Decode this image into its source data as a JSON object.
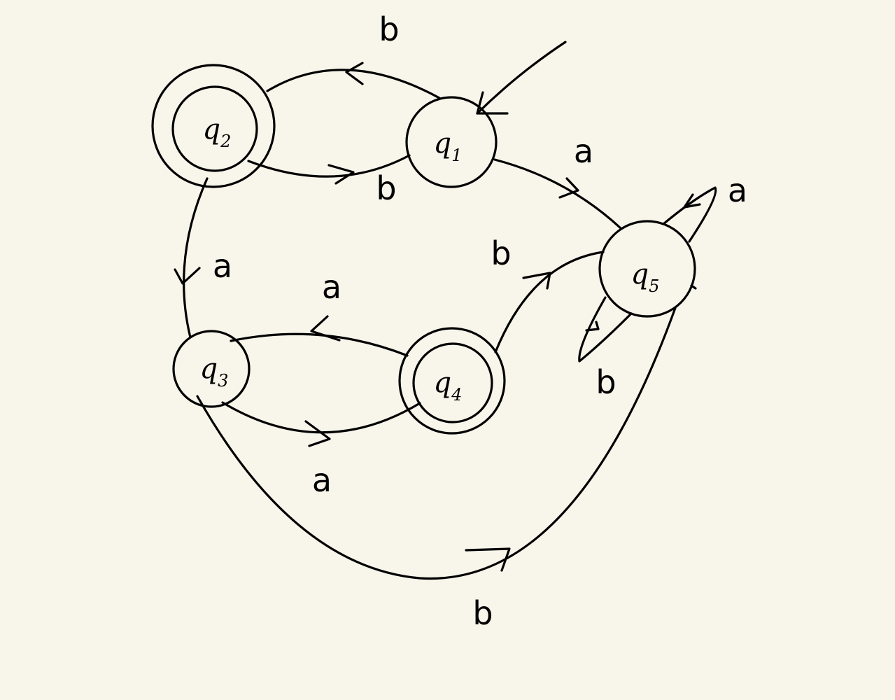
{
  "states": [
    {
      "id": "q1",
      "letter": "q",
      "index": "1",
      "accepting": false,
      "start": true
    },
    {
      "id": "q2",
      "letter": "q",
      "index": "2",
      "accepting": true,
      "start": false
    },
    {
      "id": "q3",
      "letter": "q",
      "index": "3",
      "accepting": false,
      "start": false
    },
    {
      "id": "q4",
      "letter": "q",
      "index": "4",
      "accepting": true,
      "start": false
    },
    {
      "id": "q5",
      "letter": "q",
      "index": "5",
      "accepting": false,
      "start": false
    }
  ],
  "transitions": [
    {
      "id": "q1-q2",
      "from": "q1",
      "to": "q2",
      "symbol": "b"
    },
    {
      "id": "q2-q1",
      "from": "q2",
      "to": "q1",
      "symbol": "b"
    },
    {
      "id": "q1-q5",
      "from": "q1",
      "to": "q5",
      "symbol": "a"
    },
    {
      "id": "q2-q3",
      "from": "q2",
      "to": "q3",
      "symbol": "a"
    },
    {
      "id": "q4-q3",
      "from": "q4",
      "to": "q3",
      "symbol": "a"
    },
    {
      "id": "q3-q4",
      "from": "q3",
      "to": "q4",
      "symbol": "a"
    },
    {
      "id": "q4-q5",
      "from": "q4",
      "to": "q5",
      "symbol": "b"
    },
    {
      "id": "q5-q5-a",
      "from": "q5",
      "to": "q5",
      "symbol": "a"
    },
    {
      "id": "q5-q5-b",
      "from": "q5",
      "to": "q5",
      "symbol": "b"
    },
    {
      "id": "q3-q5",
      "from": "q3",
      "to": "q5",
      "symbol": "b"
    }
  ]
}
